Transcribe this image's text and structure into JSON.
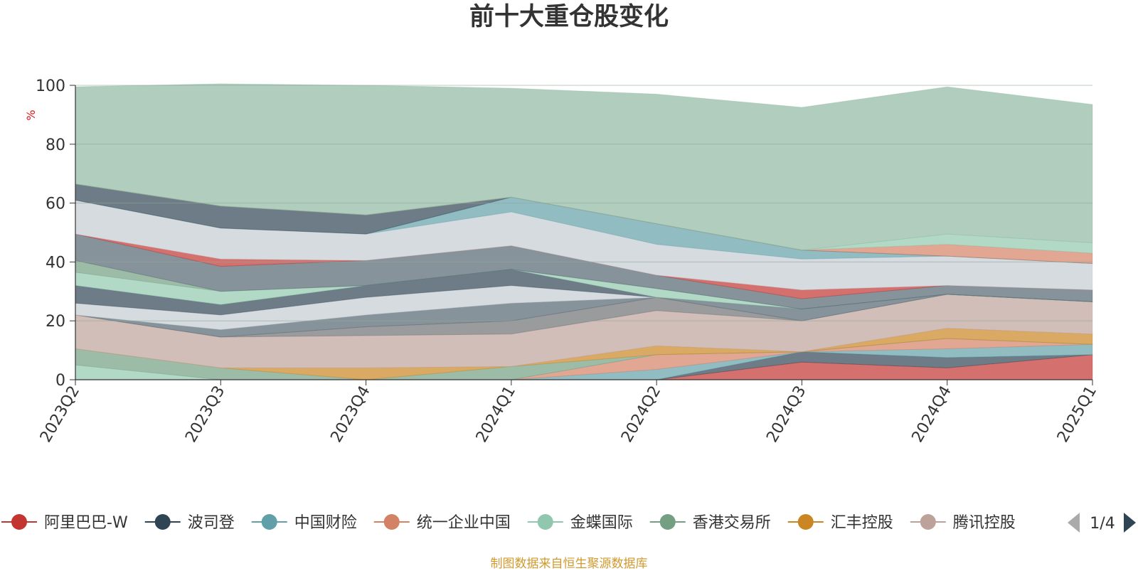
{
  "colors": {
    "title": "#333333",
    "axis": "#333333",
    "ylabel": "#e0141b",
    "footer": "#d19a2e",
    "grid": "#8fa999",
    "pager_active": "#2f4554",
    "pager_inactive": "#aaaaaa"
  },
  "footer": {
    "source": "制图数据来自恒生聚源数据库"
  },
  "legend": {
    "page": "1/4",
    "prev_icon": "triangle-left-icon",
    "next_icon": "triangle-right-icon"
  },
  "chart_data": {
    "type": "area",
    "stacked": true,
    "title": "前十大重仓股变化",
    "ylabel": "%",
    "ylim": [
      0,
      100
    ],
    "yticks": [
      0,
      20,
      40,
      60,
      80,
      100
    ],
    "x": [
      "2023Q2",
      "2023Q3",
      "2023Q4",
      "2024Q1",
      "2024Q2",
      "2024Q3",
      "2024Q4",
      "2025Q1"
    ],
    "grid": true,
    "legend_position": "bottom",
    "series": [
      {
        "name": "阿里巴巴-W",
        "color": "#c23531",
        "values": [
          0,
          0,
          0,
          0,
          0,
          6,
          4,
          8.5
        ]
      },
      {
        "name": "波司登",
        "color": "#2f4554",
        "values": [
          0,
          0,
          0,
          0,
          0,
          3.5,
          3.5,
          0
        ]
      },
      {
        "name": "中国财险",
        "color": "#61a0a8",
        "values": [
          0,
          0,
          0,
          0,
          3.5,
          0,
          3,
          3.5
        ]
      },
      {
        "name": "统一企业中国",
        "color": "#d48265",
        "values": [
          0,
          0,
          0,
          0,
          5,
          0,
          3.5,
          0
        ]
      },
      {
        "name": "金蝶国际",
        "color": "#91c7ae",
        "values": [
          5,
          0,
          0,
          0,
          0,
          0,
          0,
          0
        ]
      },
      {
        "name": "香港交易所",
        "color": "#749f83",
        "values": [
          5.5,
          4,
          0,
          4.5,
          0,
          0,
          0,
          0
        ]
      },
      {
        "name": "汇丰控股",
        "color": "#ca8622",
        "values": [
          0,
          0,
          4,
          0,
          3,
          0,
          3.5,
          3.5
        ]
      },
      {
        "name": "腾讯控股",
        "color": "#bda29a",
        "values": [
          11.5,
          10.5,
          11,
          11,
          12,
          10.5,
          11.5,
          11
        ]
      },
      {
        "name": "",
        "color": "#6e7074",
        "values": [
          0,
          0,
          3,
          4.5,
          4.5,
          0,
          0,
          0
        ]
      },
      {
        "name": "",
        "color": "#546570",
        "values": [
          0,
          2.5,
          4,
          6,
          0,
          4,
          0,
          0
        ]
      },
      {
        "name": "",
        "color": "#c4ccd3",
        "values": [
          4,
          5,
          6,
          6,
          0,
          0,
          0,
          0
        ]
      },
      {
        "name": "",
        "color": "#2f4554",
        "values": [
          6,
          3.5,
          4,
          5.5,
          0,
          0,
          0,
          0
        ]
      },
      {
        "name": "",
        "color": "#91c7ae",
        "values": [
          4.5,
          4.5,
          0,
          0,
          3,
          0,
          0,
          0
        ]
      },
      {
        "name": "",
        "color": "#749f83",
        "values": [
          4,
          0,
          0,
          0,
          0,
          0,
          0,
          0
        ]
      },
      {
        "name": "",
        "color": "#546570",
        "values": [
          9,
          8.5,
          8.5,
          8,
          4.5,
          3.5,
          3,
          4
        ]
      },
      {
        "name": "",
        "color": "#c23531",
        "values": [
          0,
          2.5,
          0,
          0,
          0,
          3,
          0,
          0
        ]
      },
      {
        "name": "",
        "color": "#c4ccd3",
        "values": [
          11.5,
          10.5,
          9,
          11.5,
          10.5,
          10.5,
          10,
          9
        ]
      },
      {
        "name": "",
        "color": "#61a0a8",
        "values": [
          0,
          0,
          0,
          5,
          7,
          3,
          0,
          0
        ]
      },
      {
        "name": "",
        "color": "#2f4554",
        "values": [
          5.5,
          7.5,
          6.5,
          0,
          0,
          0,
          0,
          0
        ]
      },
      {
        "name": "",
        "color": "#d48265",
        "values": [
          0,
          0,
          0,
          0,
          0,
          0,
          4,
          3.5
        ]
      },
      {
        "name": "",
        "color": "#91c7ae",
        "values": [
          0,
          0,
          0,
          0,
          0,
          0,
          3.5,
          3.5
        ]
      },
      {
        "name": "",
        "color": "#8fb8a3",
        "values": [
          33,
          41.5,
          44,
          37,
          44,
          48.5,
          50,
          47
        ]
      }
    ]
  }
}
